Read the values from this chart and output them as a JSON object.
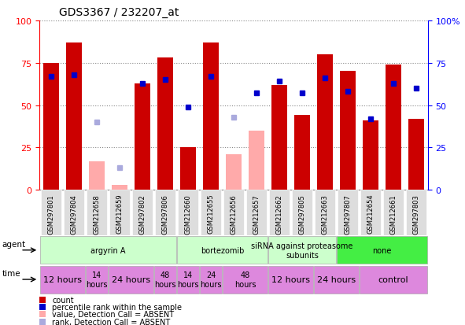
{
  "title": "GDS3367 / 232207_at",
  "samples": [
    "GSM297801",
    "GSM297804",
    "GSM212658",
    "GSM212659",
    "GSM297802",
    "GSM297806",
    "GSM212660",
    "GSM212655",
    "GSM212656",
    "GSM212657",
    "GSM212662",
    "GSM297805",
    "GSM212663",
    "GSM297807",
    "GSM212654",
    "GSM212661",
    "GSM297803"
  ],
  "count_values": [
    75,
    87,
    0,
    0,
    63,
    78,
    25,
    87,
    0,
    0,
    62,
    44,
    80,
    70,
    41,
    74,
    42
  ],
  "count_absent": [
    false,
    false,
    true,
    true,
    false,
    false,
    false,
    false,
    true,
    true,
    false,
    false,
    false,
    false,
    false,
    false,
    false
  ],
  "count_absent_values": [
    0,
    0,
    17,
    3,
    0,
    0,
    0,
    0,
    21,
    35,
    0,
    0,
    0,
    0,
    0,
    0,
    0
  ],
  "rank_values": [
    67,
    68,
    0,
    13,
    63,
    65,
    49,
    67,
    0,
    57,
    64,
    57,
    66,
    58,
    42,
    63,
    60
  ],
  "rank_absent": [
    false,
    false,
    true,
    true,
    false,
    false,
    false,
    false,
    true,
    false,
    false,
    false,
    false,
    false,
    false,
    false,
    false
  ],
  "rank_absent_values": [
    0,
    0,
    40,
    13,
    0,
    0,
    0,
    0,
    43,
    0,
    0,
    0,
    0,
    0,
    0,
    0,
    0
  ],
  "agents": [
    {
      "label": "argyrin A",
      "start": 0,
      "end": 6,
      "color": "#ccffcc"
    },
    {
      "label": "bortezomib",
      "start": 6,
      "end": 10,
      "color": "#ccffcc"
    },
    {
      "label": "siRNA against proteasome\nsubunits",
      "start": 10,
      "end": 13,
      "color": "#ccffcc"
    },
    {
      "label": "none",
      "start": 13,
      "end": 17,
      "color": "#44ee44"
    }
  ],
  "times": [
    {
      "label": "12 hours",
      "start": 0,
      "end": 2,
      "fontsize": 8
    },
    {
      "label": "14\nhours",
      "start": 2,
      "end": 3,
      "fontsize": 7
    },
    {
      "label": "24 hours",
      "start": 3,
      "end": 5,
      "fontsize": 8
    },
    {
      "label": "48\nhours",
      "start": 5,
      "end": 6,
      "fontsize": 7
    },
    {
      "label": "14\nhours",
      "start": 6,
      "end": 7,
      "fontsize": 7
    },
    {
      "label": "24\nhours",
      "start": 7,
      "end": 8,
      "fontsize": 7
    },
    {
      "label": "48\nhours",
      "start": 8,
      "end": 10,
      "fontsize": 7
    },
    {
      "label": "12 hours",
      "start": 10,
      "end": 12,
      "fontsize": 8
    },
    {
      "label": "24 hours",
      "start": 12,
      "end": 14,
      "fontsize": 8
    },
    {
      "label": "control",
      "start": 14,
      "end": 17,
      "fontsize": 8
    }
  ],
  "time_color": "#dd88dd",
  "ylim": [
    0,
    100
  ],
  "bar_color_present": "#cc0000",
  "bar_color_absent": "#ffaaaa",
  "rank_color_present": "#0000cc",
  "rank_color_absent": "#aaaadd",
  "bg_color": "#ffffff",
  "grid_color": "#888888",
  "title_fontsize": 10,
  "tick_fontsize": 7,
  "label_fontsize": 7
}
